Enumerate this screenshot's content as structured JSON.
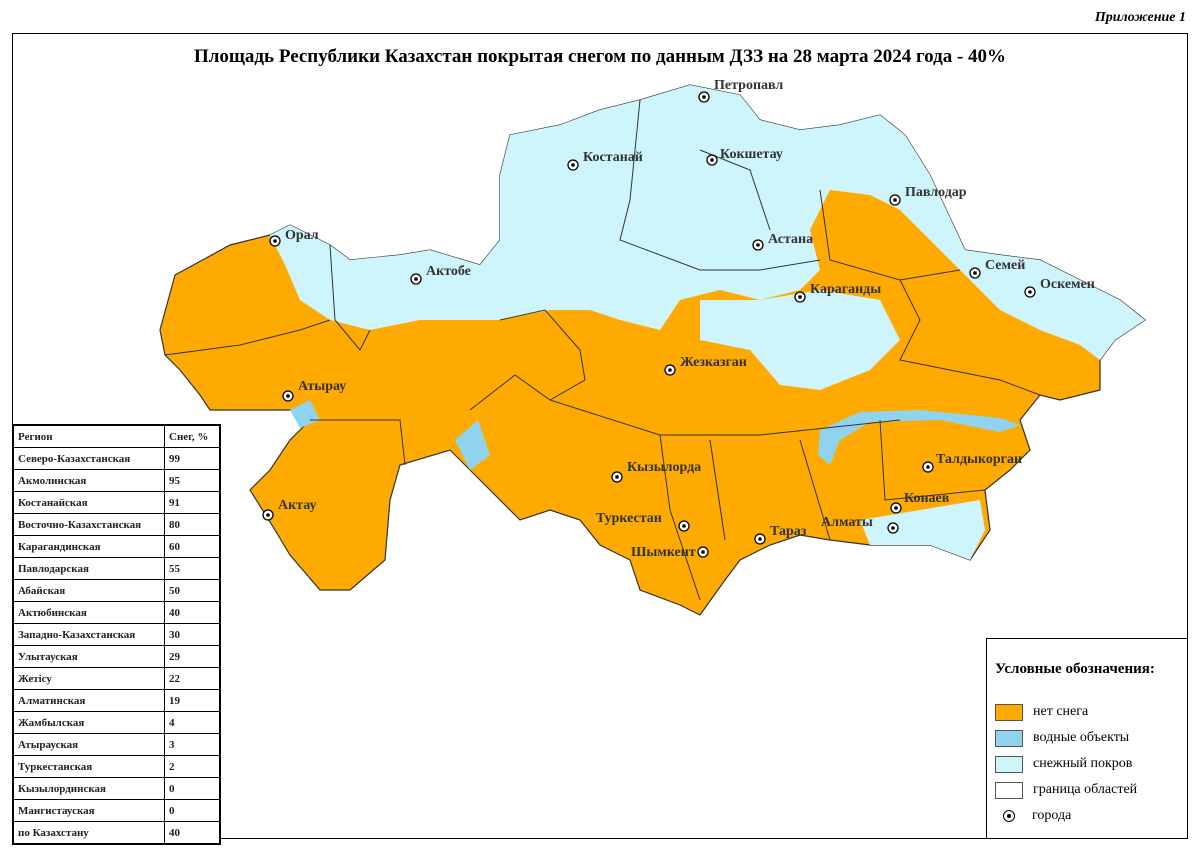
{
  "appendix": "Приложение 1",
  "title": "Площадь Республики Казахстан покрытая снегом по данным ДЗЗ на 28 марта 2024 года - 40%",
  "colors": {
    "no_snow": "#ffaa00",
    "water": "#8fd3ee",
    "snow": "#cdf5fb",
    "border": "#333333"
  },
  "cities": [
    "Петропавл",
    "Костанай",
    "Кокшетау",
    "Павлодар",
    "Орал",
    "Актобе",
    "Астана",
    "Семей",
    "Оскемен",
    "Караганды",
    "Жезказган",
    "Атырау",
    "Кызылорда",
    "Талдыкорган",
    "Конаев",
    "Туркестан",
    "Алматы",
    "Тараз",
    "Шымкент",
    "Актау"
  ],
  "table": {
    "headers": [
      "Регион",
      "Снег, %"
    ],
    "rows": [
      [
        "Северо-Казахстанская",
        "99"
      ],
      [
        "Акмолинская",
        "95"
      ],
      [
        "Костанайская",
        "91"
      ],
      [
        "Восточно-Казахстанская",
        "80"
      ],
      [
        "Карагандинская",
        "60"
      ],
      [
        "Павлодарская",
        "55"
      ],
      [
        "Абайская",
        "50"
      ],
      [
        "Актюбинская",
        "40"
      ],
      [
        "Западно-Казахстанская",
        "30"
      ],
      [
        "Улытауская",
        "29"
      ],
      [
        "Жетісу",
        "22"
      ],
      [
        "Алматинская",
        "19"
      ],
      [
        "Жамбылская",
        "4"
      ],
      [
        "Атырауская",
        "3"
      ],
      [
        "Туркестанская",
        "2"
      ],
      [
        "Кызылординская",
        "0"
      ],
      [
        "Мангистауская",
        "0"
      ],
      [
        "по Казахстану",
        "40"
      ]
    ]
  },
  "legend": {
    "title": "Условные обозначения:",
    "items": [
      "нет снега",
      "водные объекты",
      "снежный покров",
      "граница областей",
      "города"
    ]
  }
}
